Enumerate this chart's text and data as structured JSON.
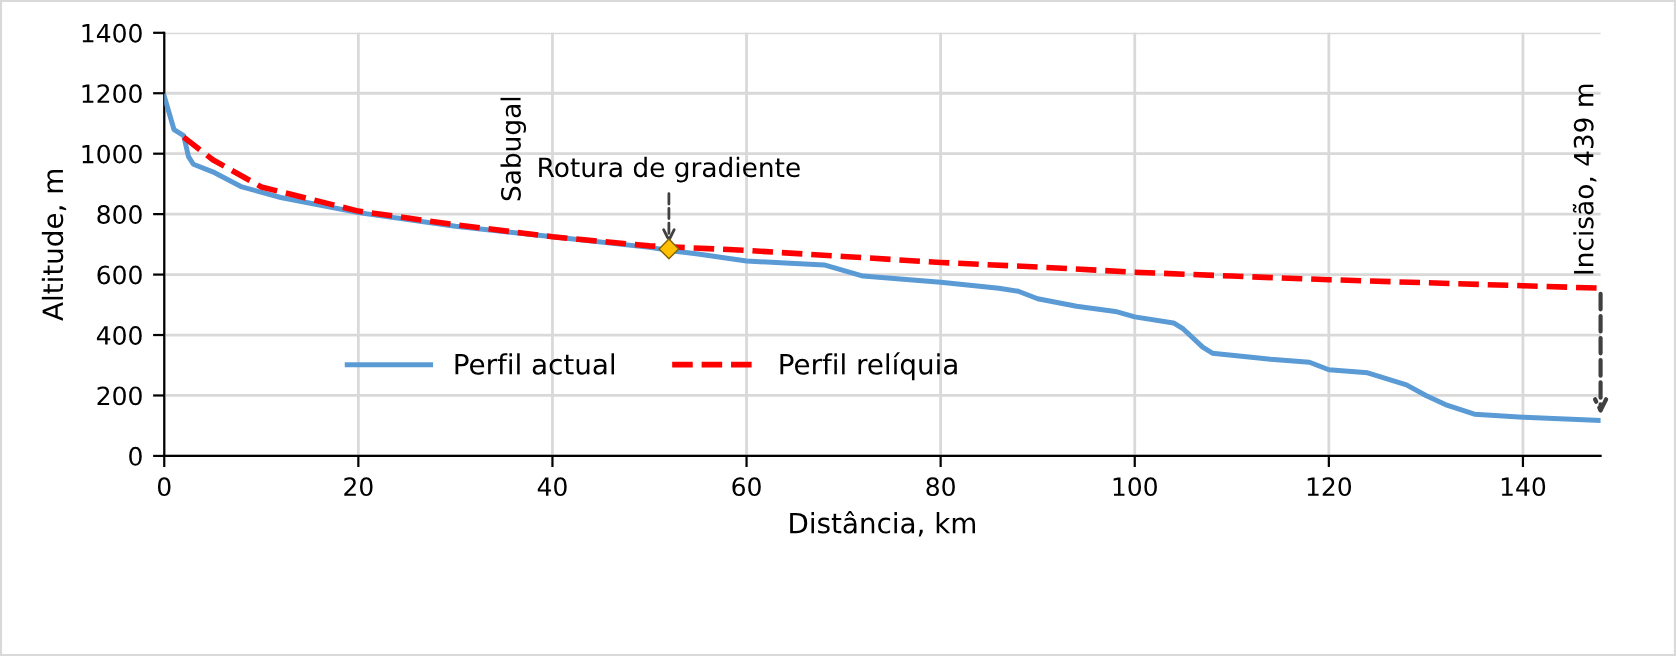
{
  "chart_data": {
    "type": "line",
    "xlabel": "Distância, km",
    "ylabel": "Altitude, m",
    "xlim": [
      0,
      148
    ],
    "ylim": [
      0,
      1400
    ],
    "xticks": [
      0,
      20,
      40,
      60,
      80,
      100,
      120,
      140
    ],
    "yticks": [
      0,
      200,
      400,
      600,
      800,
      1000,
      1200,
      1400
    ],
    "grid": true,
    "legend": "bottom left",
    "line_style": "solid",
    "marker": "none",
    "series": [
      {
        "name": "Perfil actual",
        "color": "#5b9bd5",
        "x": [
          0,
          1,
          2,
          2.5,
          3,
          5,
          8,
          12,
          16,
          20,
          30,
          40,
          50,
          52,
          55,
          60,
          64,
          68,
          72,
          80,
          86,
          88,
          90,
          94,
          98,
          100,
          104,
          105,
          107,
          108,
          114,
          118,
          120,
          124,
          128,
          130,
          132,
          135,
          140,
          148
        ],
        "values": [
          1190,
          1080,
          1060,
          990,
          965,
          940,
          890,
          855,
          830,
          805,
          760,
          725,
          690,
          680,
          668,
          645,
          638,
          632,
          595,
          575,
          555,
          545,
          520,
          495,
          478,
          460,
          440,
          420,
          360,
          340,
          320,
          310,
          285,
          275,
          235,
          200,
          170,
          138,
          128,
          117
        ]
      },
      {
        "name": "Perfil relíquia",
        "color": "#ff0000",
        "line_style": "dashed",
        "x": [
          2,
          5,
          10,
          20,
          30,
          40,
          50,
          60,
          70,
          80,
          90,
          100,
          110,
          120,
          130,
          140,
          148
        ],
        "values": [
          1055,
          980,
          890,
          810,
          765,
          725,
          695,
          680,
          660,
          640,
          625,
          608,
          595,
          583,
          573,
          563,
          555
        ]
      },
      {
        "type": "scatter",
        "color": "#ffc000",
        "marker": "diamond",
        "x": [
          52
        ],
        "values": [
          685
        ]
      }
    ],
    "annotations": [
      "Sabugal",
      {
        "text": "Rotura de gradiente",
        "x": 52,
        "y": 685
      },
      {
        "text": "Incisão, 439 m",
        "x": 148,
        "y": 117
      }
    ]
  }
}
